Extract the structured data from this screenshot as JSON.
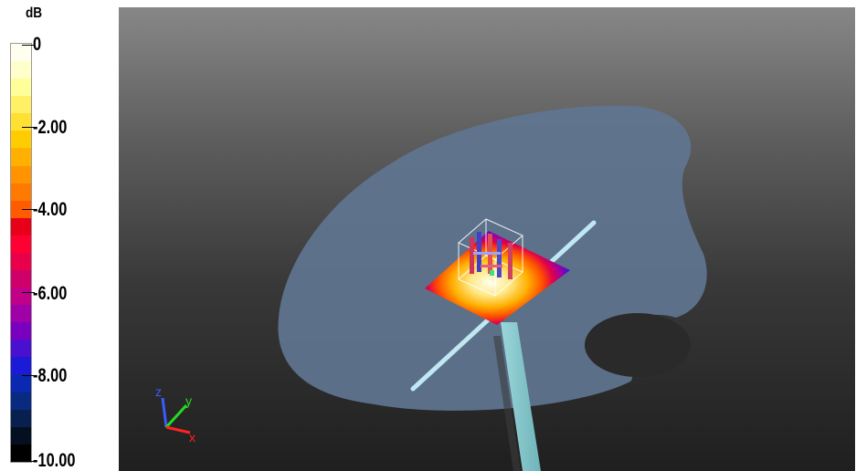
{
  "colorbar": {
    "unit": "dB",
    "labels": [
      "0",
      "-2.00",
      "-4.00",
      "-6.00",
      "-8.00",
      "-10.00"
    ],
    "range": [
      0,
      -10
    ],
    "colors": [
      "#fffff0",
      "#ffffcc",
      "#ffff99",
      "#fff066",
      "#ffe033",
      "#ffcc00",
      "#ffb000",
      "#ff9400",
      "#ff7a00",
      "#ff5c00",
      "#e8001a",
      "#ff0033",
      "#e8004a",
      "#d0006a",
      "#c00088",
      "#a000a8",
      "#7a00c0",
      "#4a10d0",
      "#1a1ad8",
      "#0a28b0",
      "#0a2a80",
      "#082050",
      "#041020",
      "#000000"
    ]
  },
  "axis_triad": {
    "labels": {
      "z": "z",
      "y": "y",
      "x": "x"
    },
    "colors": {
      "z": "#3a5cff",
      "y": "#22dd22",
      "x": "#ff2222"
    }
  },
  "scene": {
    "background_top": "#878787",
    "background_bottom": "#1f1f1f",
    "plane_color": "#5f7591",
    "beam_color": "#bfe8f2",
    "pole_color": "#86c8cc"
  }
}
